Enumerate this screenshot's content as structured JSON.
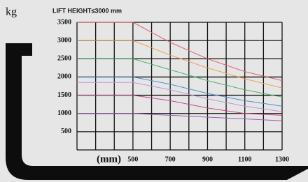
{
  "chart_data": {
    "type": "line",
    "title": "LIFT HEIGHT≤3000 mm",
    "y_unit": "kg",
    "x_label": "(mm)",
    "x": [
      200,
      500,
      700,
      900,
      1100,
      1300
    ],
    "series": [
      {
        "color": "#e0606a",
        "values": [
          3500,
          3500,
          2950,
          2500,
          2150,
          1900
        ]
      },
      {
        "color": "#f0a050",
        "values": [
          3000,
          3000,
          2600,
          2250,
          1950,
          1700
        ]
      },
      {
        "color": "#50b070",
        "values": [
          2500,
          2500,
          2200,
          1900,
          1650,
          1450
        ]
      },
      {
        "color": "#4a90d0",
        "values": [
          2000,
          2000,
          1800,
          1550,
          1350,
          1200
        ]
      },
      {
        "color": "#b89ad8",
        "values": [
          1850,
          1850,
          1650,
          1400,
          1200,
          1050
        ]
      },
      {
        "color": "#d04090",
        "values": [
          1500,
          1500,
          1350,
          1150,
          1000,
          950
        ]
      },
      {
        "color": "#9a60b0",
        "values": [
          1000,
          1000,
          950,
          900,
          850,
          800
        ]
      }
    ],
    "xlim": [
      200,
      1300
    ],
    "ylim": [
      0,
      3500
    ],
    "xticks": [
      500,
      700,
      900,
      1100,
      1300
    ],
    "yticks": [
      500,
      1000,
      1500,
      2000,
      2500,
      3000,
      3500
    ],
    "x_grid_step": 100,
    "grid": true
  }
}
